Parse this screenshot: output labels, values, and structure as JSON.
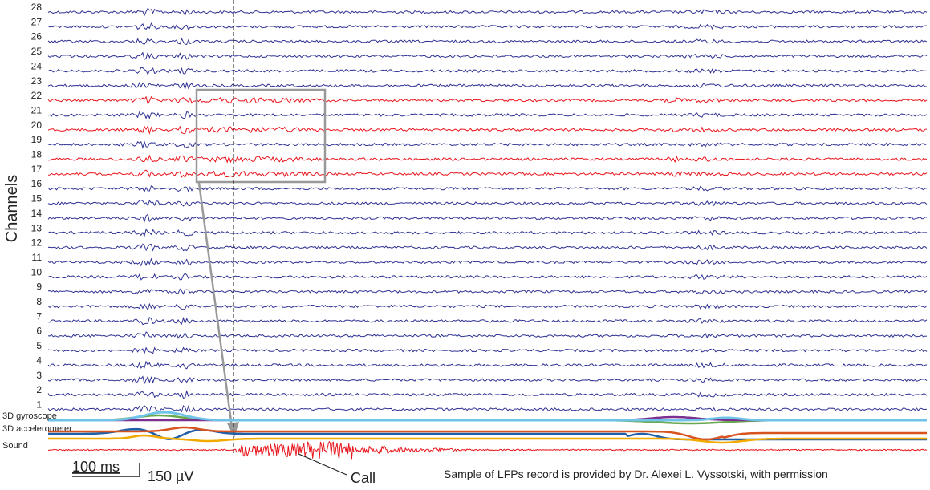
{
  "chart_data": {
    "type": "line",
    "ylabel": "Channels",
    "channels": [
      {
        "name": "28",
        "color": "#2e3192",
        "highlight": false
      },
      {
        "name": "27",
        "color": "#2e3192",
        "highlight": false
      },
      {
        "name": "26",
        "color": "#2e3192",
        "highlight": false
      },
      {
        "name": "25",
        "color": "#2e3192",
        "highlight": false
      },
      {
        "name": "24",
        "color": "#2e3192",
        "highlight": false
      },
      {
        "name": "23",
        "color": "#2e3192",
        "highlight": false
      },
      {
        "name": "22",
        "color": "#e8141b",
        "highlight": true
      },
      {
        "name": "21",
        "color": "#2e3192",
        "highlight": false
      },
      {
        "name": "20",
        "color": "#e8141b",
        "highlight": true
      },
      {
        "name": "19",
        "color": "#2e3192",
        "highlight": false
      },
      {
        "name": "18",
        "color": "#e8141b",
        "highlight": true
      },
      {
        "name": "17",
        "color": "#e8141b",
        "highlight": true
      },
      {
        "name": "16",
        "color": "#2e3192",
        "highlight": false
      },
      {
        "name": "15",
        "color": "#2e3192",
        "highlight": false
      },
      {
        "name": "14",
        "color": "#2e3192",
        "highlight": false
      },
      {
        "name": "13",
        "color": "#2e3192",
        "highlight": false
      },
      {
        "name": "12",
        "color": "#2e3192",
        "highlight": false
      },
      {
        "name": "11",
        "color": "#2e3192",
        "highlight": false
      },
      {
        "name": "10",
        "color": "#2e3192",
        "highlight": false
      },
      {
        "name": "9",
        "color": "#2e3192",
        "highlight": false
      },
      {
        "name": "8",
        "color": "#2e3192",
        "highlight": false
      },
      {
        "name": "7",
        "color": "#2e3192",
        "highlight": false
      },
      {
        "name": "6",
        "color": "#2e3192",
        "highlight": false
      },
      {
        "name": "5",
        "color": "#2e3192",
        "highlight": false
      },
      {
        "name": "4",
        "color": "#2e3192",
        "highlight": false
      },
      {
        "name": "3",
        "color": "#2e3192",
        "highlight": false
      },
      {
        "name": "2",
        "color": "#2e3192",
        "highlight": false
      },
      {
        "name": "1",
        "color": "#2e3192",
        "highlight": false
      }
    ],
    "aux_labels": {
      "gyroscope": "3D gyroscope",
      "accelerometer": "3D accelerometer",
      "sound": "Sound"
    },
    "sensor_colors": {
      "gyro_main": "#6fc3e8",
      "gyro_green": "#6aa84f",
      "gyro_purple": "#7b2f8e",
      "accel_blue": "#1f5fa8",
      "accel_orange": "#d9531e",
      "accel_yellow": "#f2a900",
      "sound": "#e8141b"
    },
    "scale_bar": {
      "time": "100 ms",
      "amplitude": "150 µV"
    },
    "annotation": "Call",
    "credit": "Sample of LFPs record is provided by Dr. Alexei L. Vyssotski, with permission"
  }
}
